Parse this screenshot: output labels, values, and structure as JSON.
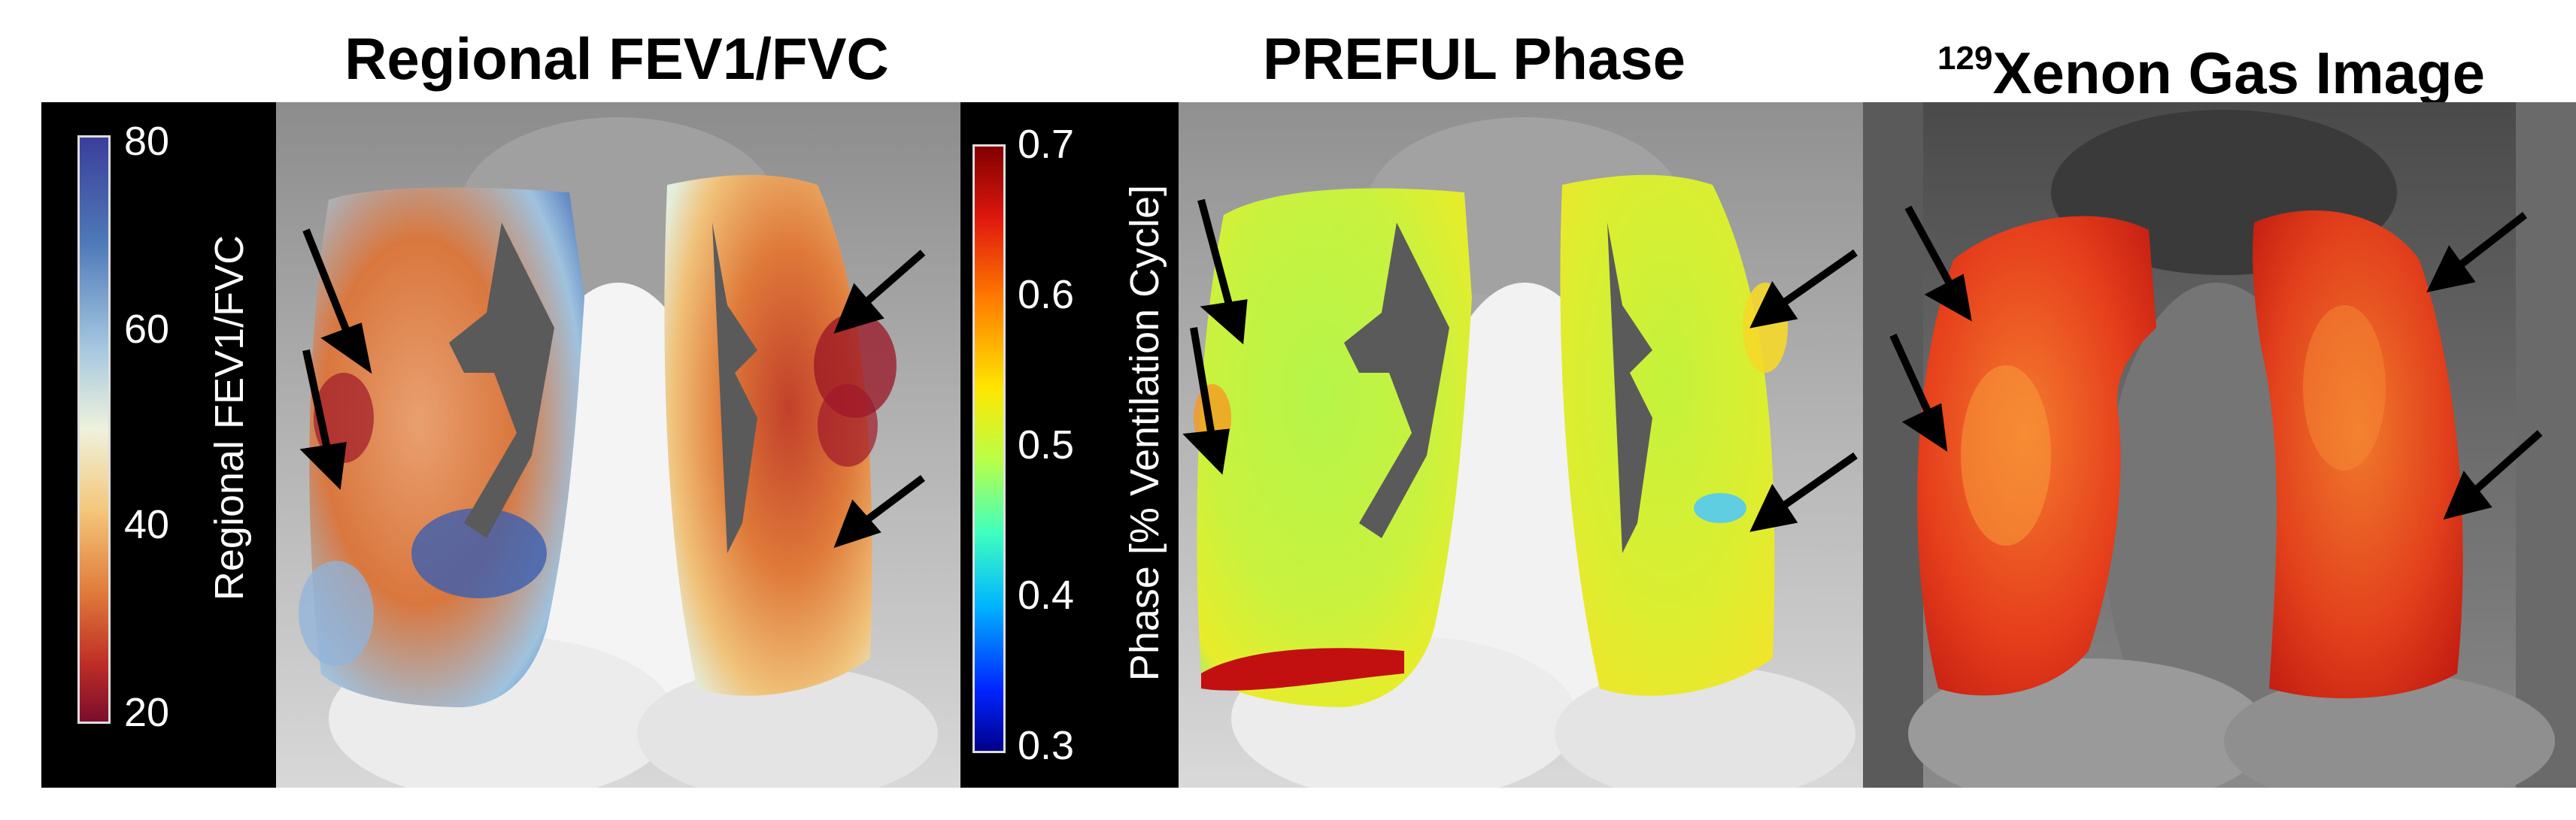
{
  "titles": {
    "fev1fvc": "Regional FEV1/FVC",
    "preful": "PREFUL Phase",
    "xenon_sup": "129",
    "xenon_main": "Xenon Gas Image"
  },
  "colorbar_fev": {
    "label": "Regional FEV1/FVC",
    "ticks": [
      "80",
      "60",
      "40",
      "20"
    ],
    "range": [
      20,
      80
    ],
    "colormap": "blue-white-red (high = blue)"
  },
  "colorbar_phase": {
    "label": "Phase [% Ventilation Cycle]",
    "ticks": [
      "0.7",
      "0.6",
      "0.5",
      "0.4",
      "0.3"
    ],
    "range": [
      0.3,
      0.7
    ],
    "colormap": "jet"
  },
  "colors": {
    "background": "#ffffff",
    "colorbar_background": "#000000",
    "arrow": "#000000",
    "xenon_overlay": "#e0301a"
  },
  "panels": [
    {
      "id": "fev1fvc-map",
      "arrows": 4
    },
    {
      "id": "preful-phase-map",
      "arrows": 4
    },
    {
      "id": "xenon-gas-image",
      "arrows": 4
    }
  ]
}
